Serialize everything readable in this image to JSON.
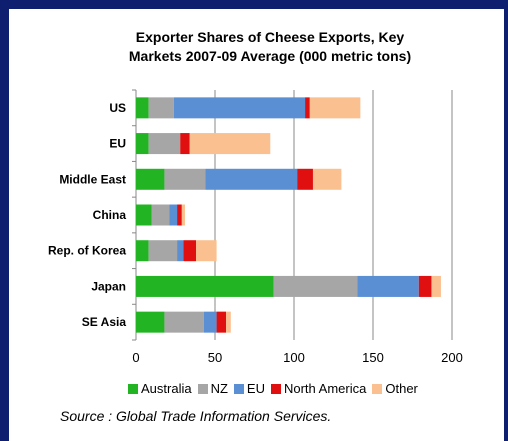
{
  "chart_data": {
    "type": "bar",
    "orientation": "horizontal",
    "stacked": true,
    "title_line1": "Exporter Shares of Cheese Exports, Key",
    "title_line2": "Markets 2007-09 Average (000 metric tons)",
    "categories": [
      "US",
      "EU",
      "Middle East",
      "China",
      "Rep. of Korea",
      "Japan",
      "SE Asia"
    ],
    "series": [
      {
        "name": "Australia",
        "color": "#22b422",
        "values": [
          8,
          8,
          18,
          10,
          8,
          87,
          18
        ]
      },
      {
        "name": "NZ",
        "color": "#a6a6a6",
        "values": [
          16,
          20,
          26,
          11,
          18,
          53,
          25
        ]
      },
      {
        "name": "EU",
        "color": "#5b8fd4",
        "values": [
          83,
          0,
          58,
          5,
          4,
          39,
          8
        ]
      },
      {
        "name": "North America",
        "color": "#e01010",
        "values": [
          3,
          6,
          10,
          3,
          8,
          8,
          6
        ]
      },
      {
        "name": "Other",
        "color": "#fac090",
        "values": [
          32,
          51,
          18,
          2,
          13,
          6,
          3
        ]
      }
    ],
    "xlim": [
      0,
      200
    ],
    "xticks": [
      "0",
      "50",
      "100",
      "150",
      "200"
    ],
    "grid": "vertical",
    "legend": "bottom"
  },
  "source_text": "Source : Global Trade Information Services."
}
